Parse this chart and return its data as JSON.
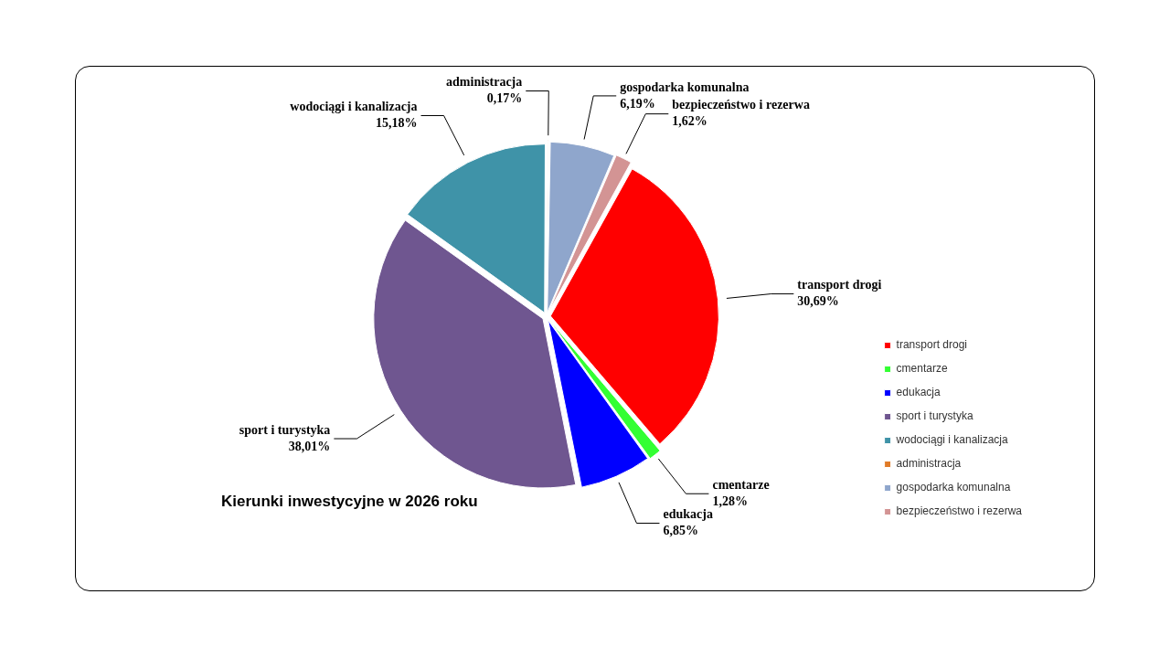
{
  "chart_data": {
    "type": "pie",
    "title": "Kierunki inwestycyjne w 2026 roku",
    "categories": [
      "transport drogi",
      "cmentarze",
      "edukacja",
      "sport i turystyka",
      "wodociągi i kanalizacja",
      "administracja",
      "gospodarka komunalna",
      "bezpieczeństwo i rezerwa"
    ],
    "values": [
      30.69,
      1.28,
      6.85,
      38.01,
      15.18,
      0.17,
      6.19,
      1.62
    ],
    "value_labels": [
      "30,69%",
      "1,28%",
      "6,85%",
      "38,01%",
      "15,18%",
      "0,17%",
      "6,19%",
      "1,62%"
    ],
    "colors": [
      "#ff0000",
      "#33ff33",
      "#0000ff",
      "#6f5690",
      "#3f93a8",
      "#e07b28",
      "#8fa6cc",
      "#d39494"
    ],
    "legend": "right"
  }
}
